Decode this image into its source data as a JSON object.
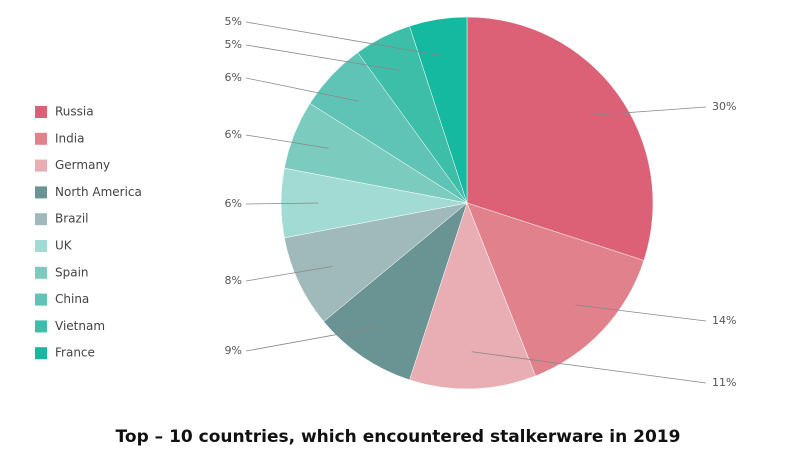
{
  "chart_data": {
    "type": "pie",
    "title": "Top – 10 countries, which encountered stalkerware in 2019",
    "categories": [
      "Russia",
      "India",
      "Germany",
      "North America",
      "Brazil",
      "UK",
      "Spain",
      "China",
      "Vietnam",
      "France"
    ],
    "values": [
      30,
      14,
      11,
      9,
      8,
      6,
      6,
      6,
      5,
      5
    ],
    "value_labels": [
      "30%",
      "14%",
      "11%",
      "9%",
      "8%",
      "6%",
      "6%",
      "6%",
      "5%",
      "5%"
    ],
    "colors": [
      "#dc6176",
      "#e0818b",
      "#e8aeb3",
      "#6a9393",
      "#a0b9ba",
      "#a2dbd3",
      "#7ccbbf",
      "#5fc4b5",
      "#3dbea9",
      "#14b9a0"
    ],
    "legend": "left"
  }
}
